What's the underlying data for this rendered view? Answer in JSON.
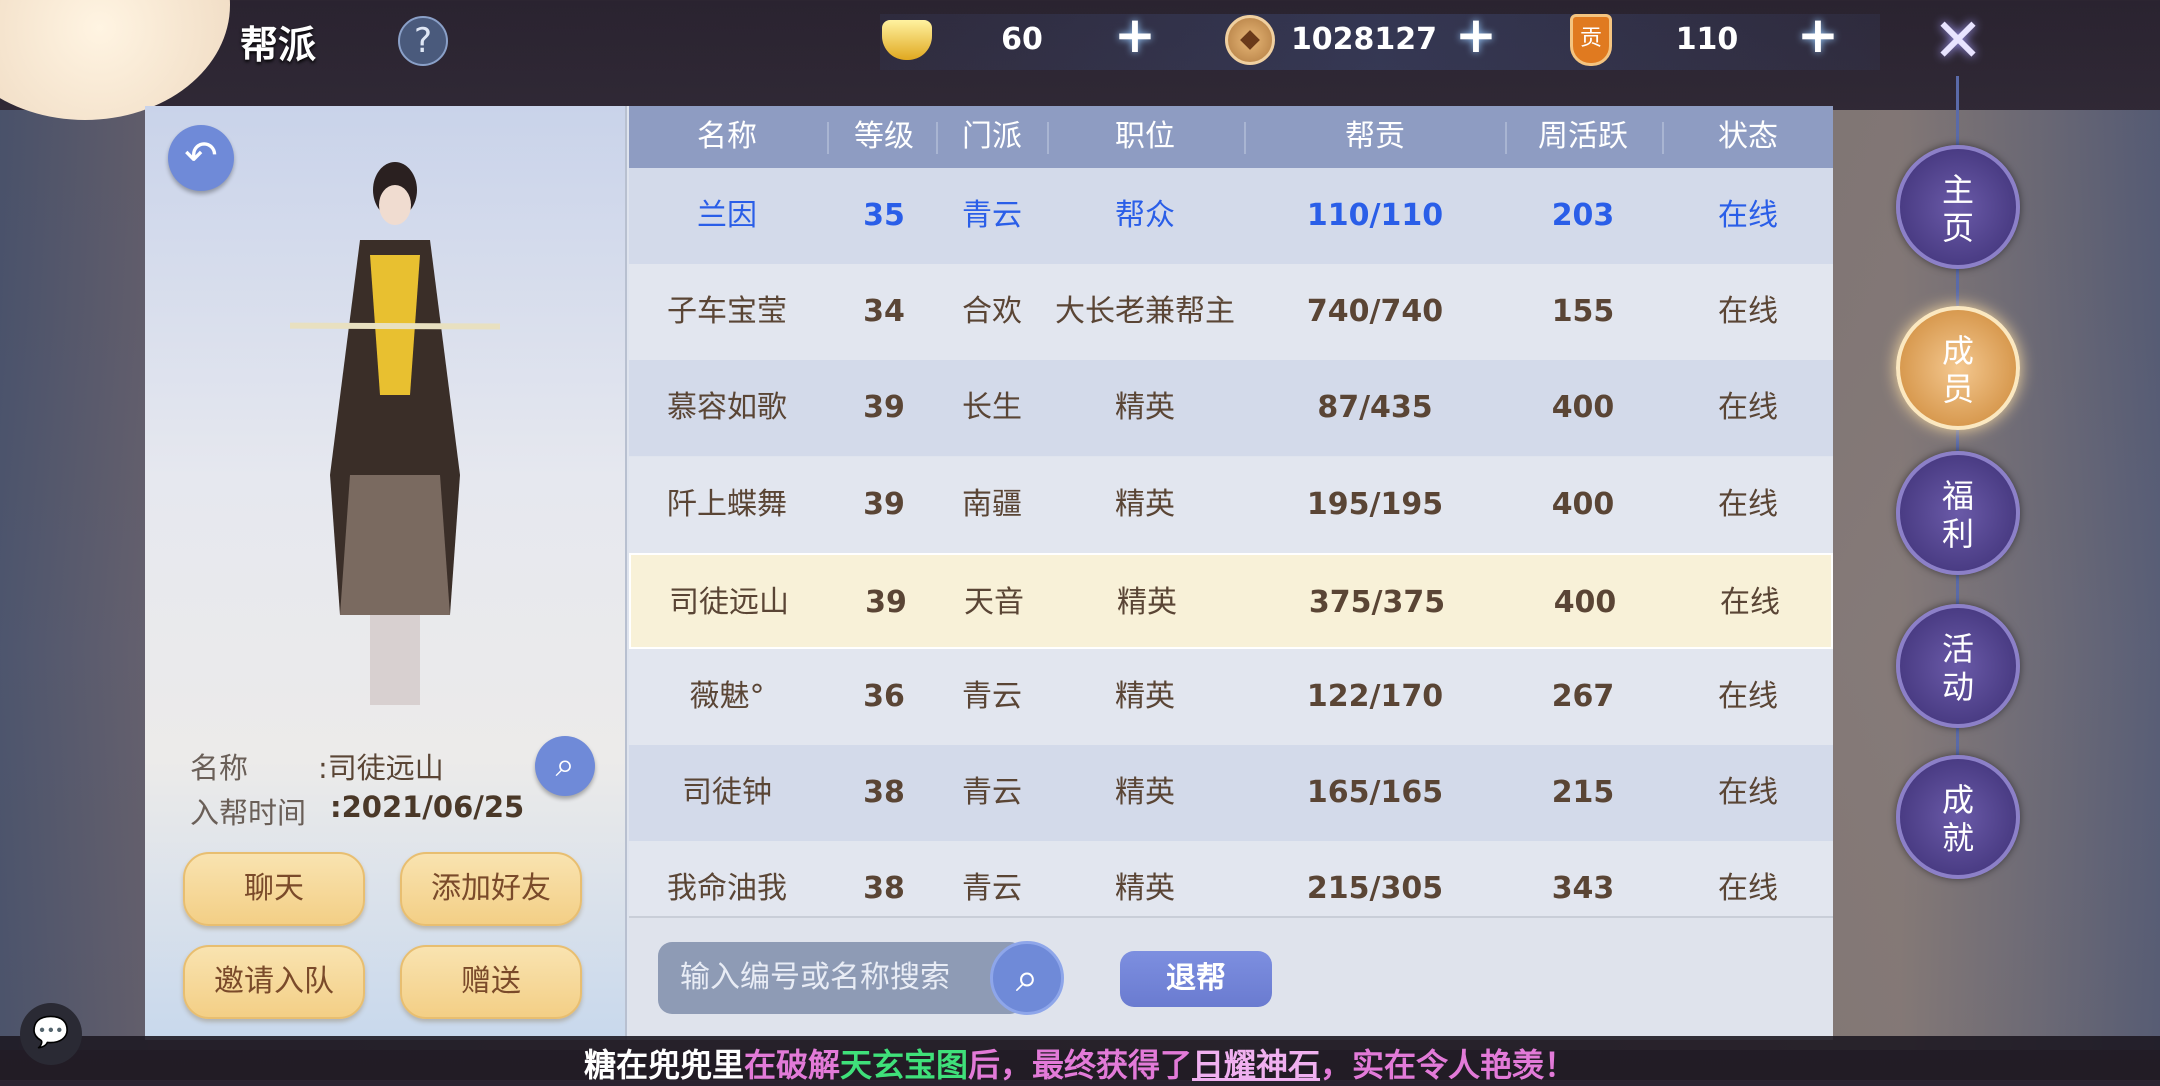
{
  "header": {
    "title": "帮派",
    "help_icon": "?"
  },
  "resources": [
    {
      "icon": "gold-ingot-icon",
      "value": "60"
    },
    {
      "icon": "copper-coin-icon",
      "value": "1028127"
    },
    {
      "icon": "contribution-badge-icon",
      "value": "110",
      "badge_text": "贡"
    }
  ],
  "plus_label": "+",
  "member": {
    "name_label": "名称",
    "name_value": ":司徒远山",
    "join_label": "入帮时间",
    "join_value": ":2021/06/25",
    "buttons": {
      "chat": "聊天",
      "add_friend": "添加好友",
      "invite": "邀请入队",
      "gift": "赠送"
    }
  },
  "table": {
    "columns": [
      "名称",
      "等级",
      "门派",
      "职位",
      "帮贡",
      "周活跃",
      "状态"
    ],
    "rows": [
      [
        "兰因",
        "35",
        "青云",
        "帮众",
        "110/110",
        "203",
        "在线"
      ],
      [
        "子车宝莹",
        "34",
        "合欢",
        "大长老兼帮主",
        "740/740",
        "155",
        "在线"
      ],
      [
        "慕容如歌",
        "39",
        "长生",
        "精英",
        "87/435",
        "400",
        "在线"
      ],
      [
        "阡上蝶舞",
        "39",
        "南疆",
        "精英",
        "195/195",
        "400",
        "在线"
      ],
      [
        "司徒远山",
        "39",
        "天音",
        "精英",
        "375/375",
        "400",
        "在线"
      ],
      [
        "薇魅°",
        "36",
        "青云",
        "精英",
        "122/170",
        "267",
        "在线"
      ],
      [
        "司徒钟",
        "38",
        "青云",
        "精英",
        "165/165",
        "215",
        "在线"
      ],
      [
        "我命油我",
        "38",
        "青云",
        "精英",
        "215/305",
        "343",
        "在线"
      ]
    ],
    "self_row": 0,
    "selected_row": 4
  },
  "search": {
    "placeholder": "输入编号或名称搜索",
    "quit_label": "退帮"
  },
  "nav": [
    {
      "label": "主页",
      "active": false
    },
    {
      "label": "成员",
      "active": true
    },
    {
      "label": "福利",
      "active": false
    },
    {
      "label": "活动",
      "active": false
    },
    {
      "label": "成就",
      "active": false
    }
  ],
  "ticker": [
    {
      "text": "糖在兜兜里",
      "color": "#ffffff"
    },
    {
      "text": "在破解",
      "color": "#e27ad8"
    },
    {
      "text": "天玄宝图",
      "color": "#3fe07a"
    },
    {
      "text": "后，最终获得了",
      "color": "#e27ad8"
    },
    {
      "text": "日耀神石",
      "color": "#f0b0f0"
    },
    {
      "text": "，实在令人艳羡！",
      "color": "#e27ad8"
    }
  ],
  "colors": {
    "self": "#2a5ee8",
    "text": "#5a4535",
    "accent": "#6f8ad8",
    "selected_row": "#f8f1d8"
  }
}
